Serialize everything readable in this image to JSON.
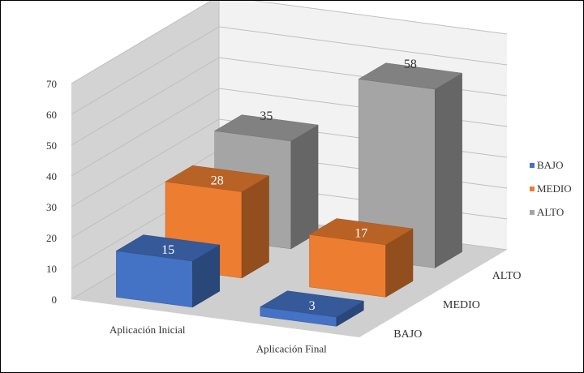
{
  "chart_data": {
    "type": "bar",
    "subtype": "3d-column",
    "title": "",
    "categories": [
      "Aplicación Inicial",
      "Aplicación Final"
    ],
    "series": [
      {
        "name": "BAJO",
        "values": [
          15,
          3
        ],
        "color": "#4472C4"
      },
      {
        "name": "MEDIO",
        "values": [
          28,
          17
        ],
        "color": "#ED7D31"
      },
      {
        "name": "ALTO",
        "values": [
          35,
          58
        ],
        "color": "#A5A5A5"
      }
    ],
    "depth_labels": [
      "ALTO",
      "MEDIO",
      "BAJO"
    ],
    "y_ticks": [
      "0",
      "10",
      "20",
      "30",
      "40",
      "50",
      "60",
      "70"
    ],
    "ylim": [
      0,
      70
    ],
    "data_labels": true,
    "grid": true,
    "legend_position": "right"
  }
}
